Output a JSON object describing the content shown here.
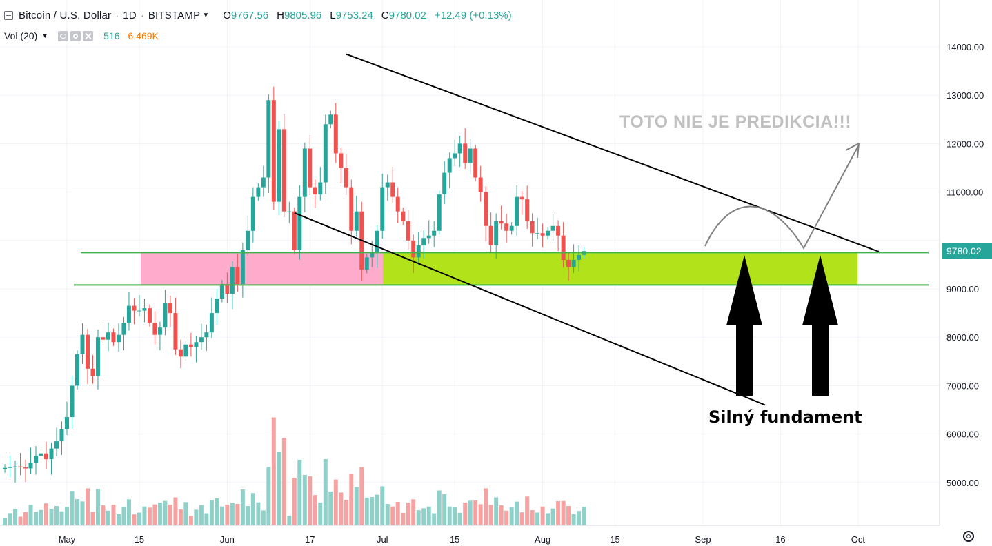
{
  "header": {
    "symbol": "Bitcoin / U.S. Dollar",
    "interval": "1D",
    "exchange": "BITSTAMP",
    "caret_icon": "chevron-down-icon",
    "ohlc": [
      {
        "k": "O",
        "v": "9767.56"
      },
      {
        "k": "H",
        "v": "9805.96"
      },
      {
        "k": "L",
        "v": "9753.24"
      },
      {
        "k": "C",
        "v": "9780.02"
      }
    ],
    "change": "+12.49 (+0.13%)"
  },
  "volume_legend": {
    "title": "Vol (20)",
    "value1": "516",
    "value2": "6.469K",
    "icons": [
      "eye-icon",
      "gear-icon",
      "close-icon"
    ]
  },
  "price_badge": "9780.02",
  "annotations": {
    "note": "TOTO NIE JE PREDIKCIA!!!",
    "support_label": "Silný fundament"
  },
  "colors": {
    "up": "#26a69a",
    "down": "#ef5350",
    "vol_up": "#8fd1c9",
    "vol_down": "#f5a3a2",
    "zone_green": "#b2e31a",
    "zone_pink": "#ffabcc",
    "support_line": "#3cb44b",
    "grid": "#f0f3fa"
  },
  "chart_data": {
    "type": "candlestick",
    "symbol": "Bitcoin / U.S. Dollar",
    "interval": "1D",
    "exchange": "BITSTAMP",
    "y_axis": {
      "range": [
        4200,
        14700
      ],
      "ticks": [
        5000,
        6000,
        7000,
        8000,
        9000,
        10000,
        11000,
        12000,
        13000,
        14000
      ],
      "tick_labels": [
        "5000.00",
        "6000.00",
        "7000.00",
        "8000.00",
        "9000.00",
        "",
        "11000.00",
        "12000.00",
        "13000.00",
        "14000.00"
      ]
    },
    "x_axis": {
      "tick_labels": [
        {
          "label": "May",
          "day": 0
        },
        {
          "label": "15",
          "day": 14
        },
        {
          "label": "Jun",
          "day": 31
        },
        {
          "label": "17",
          "day": 47
        },
        {
          "label": "Jul",
          "day": 61
        },
        {
          "label": "15",
          "day": 75
        },
        {
          "label": "Aug",
          "day": 92
        },
        {
          "label": "15",
          "day": 106
        },
        {
          "label": "Sep",
          "day": 123
        },
        {
          "label": "16",
          "day": 138
        },
        {
          "label": "Oct",
          "day": 153
        }
      ]
    },
    "closes": [
      5300,
      5320,
      5330,
      5310,
      5290,
      5400,
      5550,
      5600,
      5480,
      5700,
      5850,
      6100,
      6350,
      7000,
      7650,
      8050,
      7350,
      7200,
      8000,
      7950,
      8100,
      7900,
      8050,
      8300,
      8650,
      8550,
      8550,
      8600,
      8300,
      8050,
      8200,
      8700,
      8500,
      7750,
      7600,
      7850,
      7800,
      7900,
      8000,
      8100,
      8500,
      8800,
      9100,
      8900,
      9450,
      9100,
      9800,
      10200,
      10900,
      11100,
      11300,
      12900,
      10800,
      12300,
      10600,
      10600,
      9800,
      10900,
      11900,
      11100,
      10950,
      11200,
      12400,
      12600,
      11800,
      11500,
      11100,
      10200,
      10600,
      9400,
      9650,
      9750,
      10200,
      11100,
      11200,
      10900,
      10600,
      10400,
      10000,
      9650,
      9900,
      10050,
      10100,
      10200,
      10950,
      11400,
      11700,
      11800,
      12000,
      11600,
      11900,
      11300,
      11000,
      10300,
      9900,
      10400,
      10350,
      10200,
      10300,
      10900,
      10850,
      10400,
      10150,
      10150,
      10100,
      10200,
      10300,
      10100,
      9600,
      9450,
      9600,
      9700,
      9780
    ],
    "volume": {
      "ylim": [
        0,
        30000
      ],
      "values_approx": [
        2000,
        1500,
        3500,
        3700,
        1800,
        2200,
        2000,
        4000,
        2300,
        2800,
        3700,
        7500,
        11600,
        11600,
        7800,
        11400,
        7700,
        2200
      ]
    },
    "overlays": {
      "channel_upper": [
        {
          "day": 54,
          "price": 13850
        },
        {
          "day": 157,
          "price": 9770
        }
      ],
      "channel_lower": [
        {
          "day": 44,
          "price": 10570
        },
        {
          "day": 135,
          "price": 6600
        }
      ],
      "support_lines": [
        9750,
        9080
      ],
      "support_zone": [
        9080,
        9750
      ],
      "note": "TOTO NIE JE PREDIKCIA!!!",
      "label": "Silný fundament"
    }
  }
}
